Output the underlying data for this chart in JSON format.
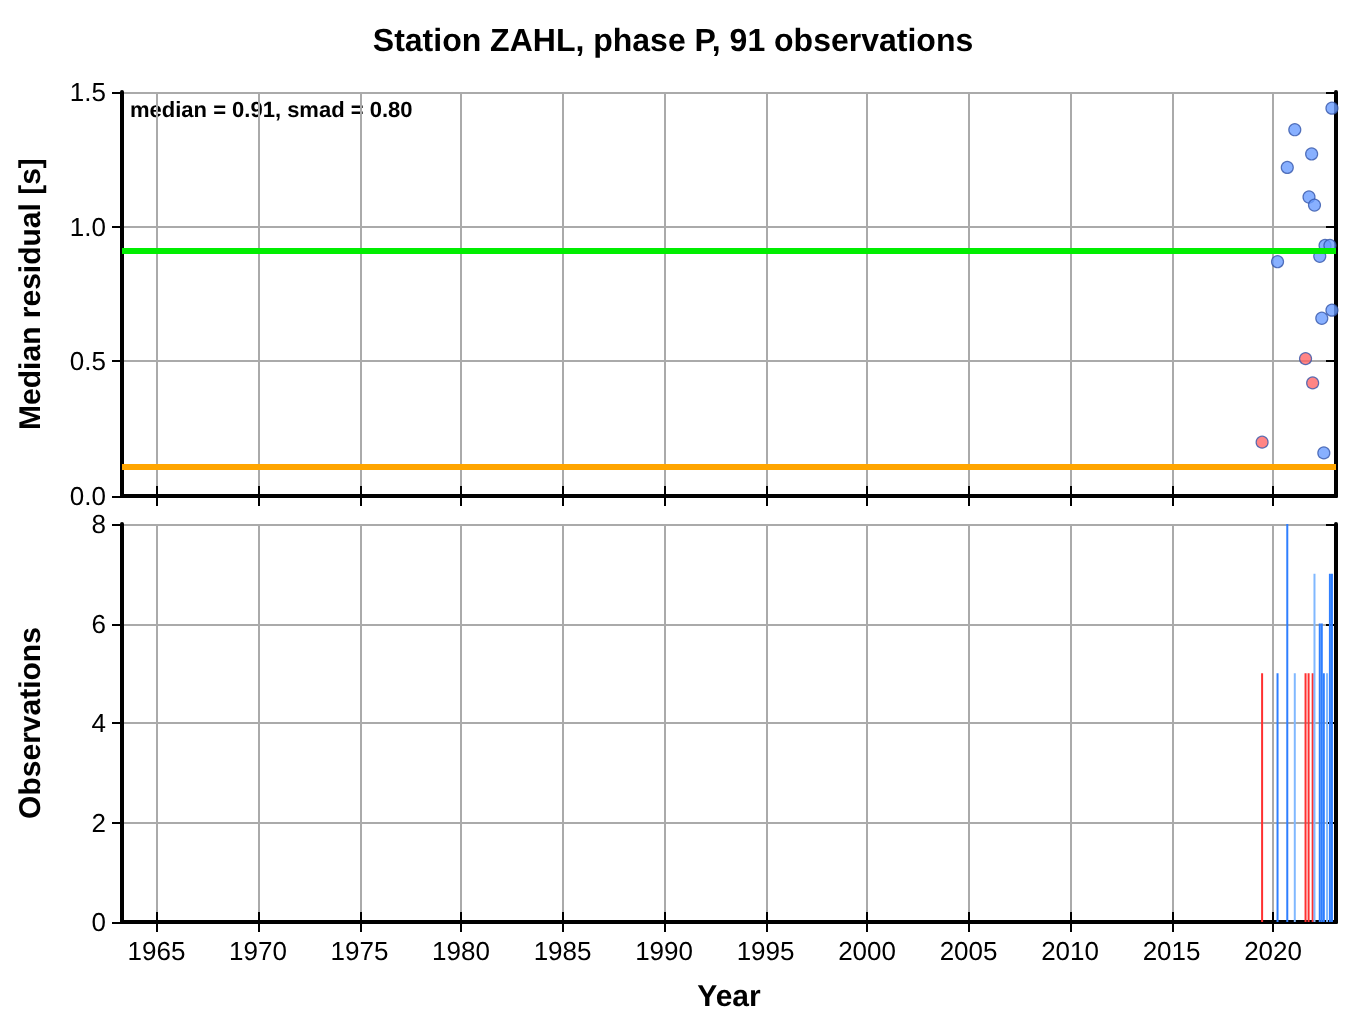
{
  "chart_data": [
    {
      "type": "scatter",
      "title": "Station ZAHL, phase P, 91 observations",
      "ylabel": "Median residual [s]",
      "annotations": [
        "median = 0.91, smad = 0.80"
      ],
      "series": [
        {
          "color": "#6a9cff",
          "x": [
            2022.9,
            2021.07,
            2021.9,
            2020.7,
            2021.77,
            2022.04,
            2022.56,
            2022.8,
            2022.3,
            2020.22,
            2022.9,
            2022.4,
            2022.5
          ],
          "values": [
            1.44,
            1.36,
            1.27,
            1.22,
            1.11,
            1.08,
            0.93,
            0.93,
            0.89,
            0.87,
            0.69,
            0.66,
            0.16
          ]
        },
        {
          "color": "#ff6666",
          "x": [
            2021.6,
            2021.95,
            2019.46
          ],
          "values": [
            0.51,
            0.42,
            0.2
          ]
        }
      ],
      "marker": "circle",
      "xlim": [
        1963.3,
        2023.1
      ],
      "xticks": [
        1965,
        1970,
        1975,
        1980,
        1985,
        1990,
        1995,
        2000,
        2005,
        2010,
        2015,
        2020
      ],
      "ylim": [
        0,
        1.5
      ],
      "yticks": [
        {
          "value": 0,
          "label": "0.0"
        },
        0.5,
        {
          "value": 1,
          "label": "1.0"
        },
        1.5
      ],
      "tick_labels": "y",
      "grid": true,
      "ref_lines": [
        {
          "axis": "y",
          "value": 0.91,
          "color": "#00ee00"
        },
        {
          "axis": "y",
          "value": 0.11,
          "color": "#ffa500"
        }
      ]
    },
    {
      "type": "bar",
      "xlabel": "Year",
      "ylabel": "Observations",
      "series": [
        {
          "color": "#ff3030",
          "x": [
            2019.46,
            2021.6,
            2021.75,
            2021.95
          ],
          "values": [
            5,
            5,
            5,
            5
          ]
        },
        {
          "color": "#2f7fff",
          "x": [
            2020.22,
            2020.7,
            2022.3,
            2022.4,
            2022.5,
            2022.8,
            2022.9
          ],
          "values": [
            5,
            8,
            6,
            6,
            5,
            7,
            7
          ]
        },
        {
          "color": "#80b8ff",
          "x": [
            2021.07,
            2022.04,
            2022.66
          ],
          "values": [
            5,
            7,
            5
          ]
        }
      ],
      "xlim": [
        1963.3,
        2023.1
      ],
      "xticks": [
        1965,
        1970,
        1975,
        1980,
        1985,
        1990,
        1995,
        2000,
        2005,
        2010,
        2015,
        2020
      ],
      "ylim": [
        0,
        8
      ],
      "yticks": [
        0,
        2,
        4,
        6,
        8
      ],
      "grid": true
    }
  ]
}
